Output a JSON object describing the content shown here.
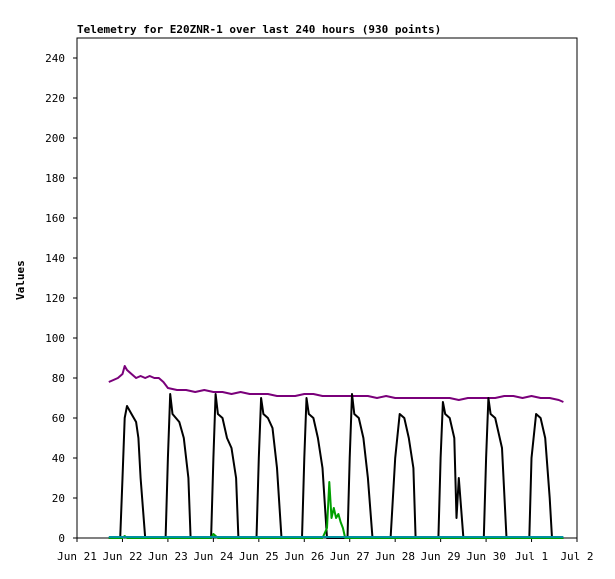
{
  "chart_data": {
    "type": "line",
    "title": "Telemetry for E20ZNR-1 over last 240 hours (930 points)",
    "ylabel": "Values",
    "xlabel": "",
    "ylim": [
      0,
      250
    ],
    "yticks": [
      0,
      20,
      40,
      60,
      80,
      100,
      120,
      140,
      160,
      180,
      200,
      220,
      240
    ],
    "x_tick_labels": [
      "Jun 21",
      "Jun 22",
      "Jun 23",
      "Jun 24",
      "Jun 25",
      "Jun 26",
      "Jun 27",
      "Jun 28",
      "Jun 29",
      "Jun 30",
      "Jul 1",
      "Jul 2"
    ],
    "x_range_days": [
      0,
      11
    ],
    "grid": false,
    "series": [
      {
        "color": "#7a007a",
        "points": [
          [
            0.7,
            78
          ],
          [
            0.8,
            79
          ],
          [
            0.9,
            80
          ],
          [
            1.0,
            82
          ],
          [
            1.05,
            86
          ],
          [
            1.1,
            84
          ],
          [
            1.2,
            82
          ],
          [
            1.3,
            80
          ],
          [
            1.4,
            81
          ],
          [
            1.5,
            80
          ],
          [
            1.6,
            81
          ],
          [
            1.7,
            80
          ],
          [
            1.8,
            80
          ],
          [
            1.9,
            78
          ],
          [
            2.0,
            75
          ],
          [
            2.2,
            74
          ],
          [
            2.4,
            74
          ],
          [
            2.6,
            73
          ],
          [
            2.8,
            74
          ],
          [
            3.0,
            73
          ],
          [
            3.2,
            73
          ],
          [
            3.4,
            72
          ],
          [
            3.6,
            73
          ],
          [
            3.8,
            72
          ],
          [
            4.0,
            72
          ],
          [
            4.2,
            72
          ],
          [
            4.4,
            71
          ],
          [
            4.6,
            71
          ],
          [
            4.8,
            71
          ],
          [
            5.0,
            72
          ],
          [
            5.2,
            72
          ],
          [
            5.4,
            71
          ],
          [
            5.6,
            71
          ],
          [
            5.8,
            71
          ],
          [
            6.0,
            71
          ],
          [
            6.2,
            71
          ],
          [
            6.4,
            71
          ],
          [
            6.6,
            70
          ],
          [
            6.8,
            71
          ],
          [
            7.0,
            70
          ],
          [
            7.2,
            70
          ],
          [
            7.4,
            70
          ],
          [
            7.6,
            70
          ],
          [
            7.8,
            70
          ],
          [
            8.0,
            70
          ],
          [
            8.2,
            70
          ],
          [
            8.4,
            69
          ],
          [
            8.6,
            70
          ],
          [
            8.8,
            70
          ],
          [
            9.0,
            70
          ],
          [
            9.2,
            70
          ],
          [
            9.4,
            71
          ],
          [
            9.6,
            71
          ],
          [
            9.8,
            70
          ],
          [
            10.0,
            71
          ],
          [
            10.2,
            70
          ],
          [
            10.4,
            70
          ],
          [
            10.6,
            69
          ],
          [
            10.7,
            68
          ]
        ]
      },
      {
        "color": "#000000",
        "points": [
          [
            0.7,
            0
          ],
          [
            0.95,
            0
          ],
          [
            1.0,
            30
          ],
          [
            1.05,
            60
          ],
          [
            1.1,
            66
          ],
          [
            1.2,
            62
          ],
          [
            1.3,
            58
          ],
          [
            1.35,
            50
          ],
          [
            1.4,
            30
          ],
          [
            1.5,
            0
          ],
          [
            1.95,
            0
          ],
          [
            2.0,
            40
          ],
          [
            2.05,
            72
          ],
          [
            2.1,
            62
          ],
          [
            2.25,
            58
          ],
          [
            2.35,
            50
          ],
          [
            2.45,
            30
          ],
          [
            2.5,
            0
          ],
          [
            2.95,
            0
          ],
          [
            3.0,
            40
          ],
          [
            3.05,
            72
          ],
          [
            3.1,
            62
          ],
          [
            3.2,
            60
          ],
          [
            3.3,
            50
          ],
          [
            3.4,
            45
          ],
          [
            3.5,
            30
          ],
          [
            3.55,
            0
          ],
          [
            3.95,
            0
          ],
          [
            4.0,
            40
          ],
          [
            4.05,
            70
          ],
          [
            4.1,
            62
          ],
          [
            4.2,
            60
          ],
          [
            4.3,
            55
          ],
          [
            4.4,
            35
          ],
          [
            4.5,
            0
          ],
          [
            4.95,
            0
          ],
          [
            5.0,
            40
          ],
          [
            5.05,
            70
          ],
          [
            5.1,
            62
          ],
          [
            5.2,
            60
          ],
          [
            5.3,
            50
          ],
          [
            5.4,
            35
          ],
          [
            5.5,
            0
          ],
          [
            5.95,
            0
          ],
          [
            6.0,
            40
          ],
          [
            6.05,
            72
          ],
          [
            6.1,
            62
          ],
          [
            6.2,
            60
          ],
          [
            6.3,
            50
          ],
          [
            6.4,
            30
          ],
          [
            6.5,
            0
          ],
          [
            6.9,
            0
          ],
          [
            7.0,
            40
          ],
          [
            7.1,
            62
          ],
          [
            7.2,
            60
          ],
          [
            7.3,
            50
          ],
          [
            7.4,
            35
          ],
          [
            7.45,
            0
          ],
          [
            7.95,
            0
          ],
          [
            8.0,
            40
          ],
          [
            8.05,
            68
          ],
          [
            8.1,
            62
          ],
          [
            8.2,
            60
          ],
          [
            8.3,
            50
          ],
          [
            8.35,
            10
          ],
          [
            8.4,
            30
          ],
          [
            8.5,
            0
          ],
          [
            8.95,
            0
          ],
          [
            9.0,
            40
          ],
          [
            9.05,
            70
          ],
          [
            9.1,
            62
          ],
          [
            9.2,
            60
          ],
          [
            9.35,
            45
          ],
          [
            9.45,
            0
          ],
          [
            9.95,
            0
          ],
          [
            10.0,
            40
          ],
          [
            10.1,
            62
          ],
          [
            10.2,
            60
          ],
          [
            10.3,
            50
          ],
          [
            10.4,
            20
          ],
          [
            10.45,
            0
          ],
          [
            10.7,
            0
          ]
        ]
      },
      {
        "color": "#00a000",
        "points": [
          [
            0.7,
            0
          ],
          [
            1.0,
            0
          ],
          [
            1.05,
            1
          ],
          [
            1.1,
            0
          ],
          [
            2.95,
            0
          ],
          [
            3.0,
            2
          ],
          [
            3.1,
            0
          ],
          [
            5.4,
            0
          ],
          [
            5.5,
            5
          ],
          [
            5.55,
            28
          ],
          [
            5.6,
            10
          ],
          [
            5.65,
            15
          ],
          [
            5.7,
            10
          ],
          [
            5.75,
            12
          ],
          [
            5.8,
            8
          ],
          [
            5.85,
            5
          ],
          [
            5.9,
            0
          ],
          [
            10.7,
            0
          ]
        ]
      },
      {
        "color": "#0090a0",
        "points": [
          [
            0.7,
            0.5
          ],
          [
            10.7,
            0.5
          ]
        ]
      }
    ]
  }
}
